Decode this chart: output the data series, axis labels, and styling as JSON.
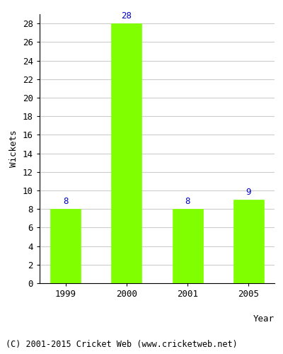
{
  "years": [
    "1999",
    "2000",
    "2001",
    "2005"
  ],
  "values": [
    8,
    28,
    8,
    9
  ],
  "bar_color": "#7FFF00",
  "bar_edge_color": "#7FFF00",
  "label_color": "#0000CC",
  "ylabel": "Wickets",
  "xlabel": "Year",
  "ylim": [
    0,
    29
  ],
  "yticks": [
    0,
    2,
    4,
    6,
    8,
    10,
    12,
    14,
    16,
    18,
    20,
    22,
    24,
    26,
    28
  ],
  "grid_color": "#cccccc",
  "footer": "(C) 2001-2015 Cricket Web (www.cricketweb.net)",
  "label_fontsize": 9,
  "axis_fontsize": 9,
  "tick_fontsize": 9,
  "footer_fontsize": 8.5
}
